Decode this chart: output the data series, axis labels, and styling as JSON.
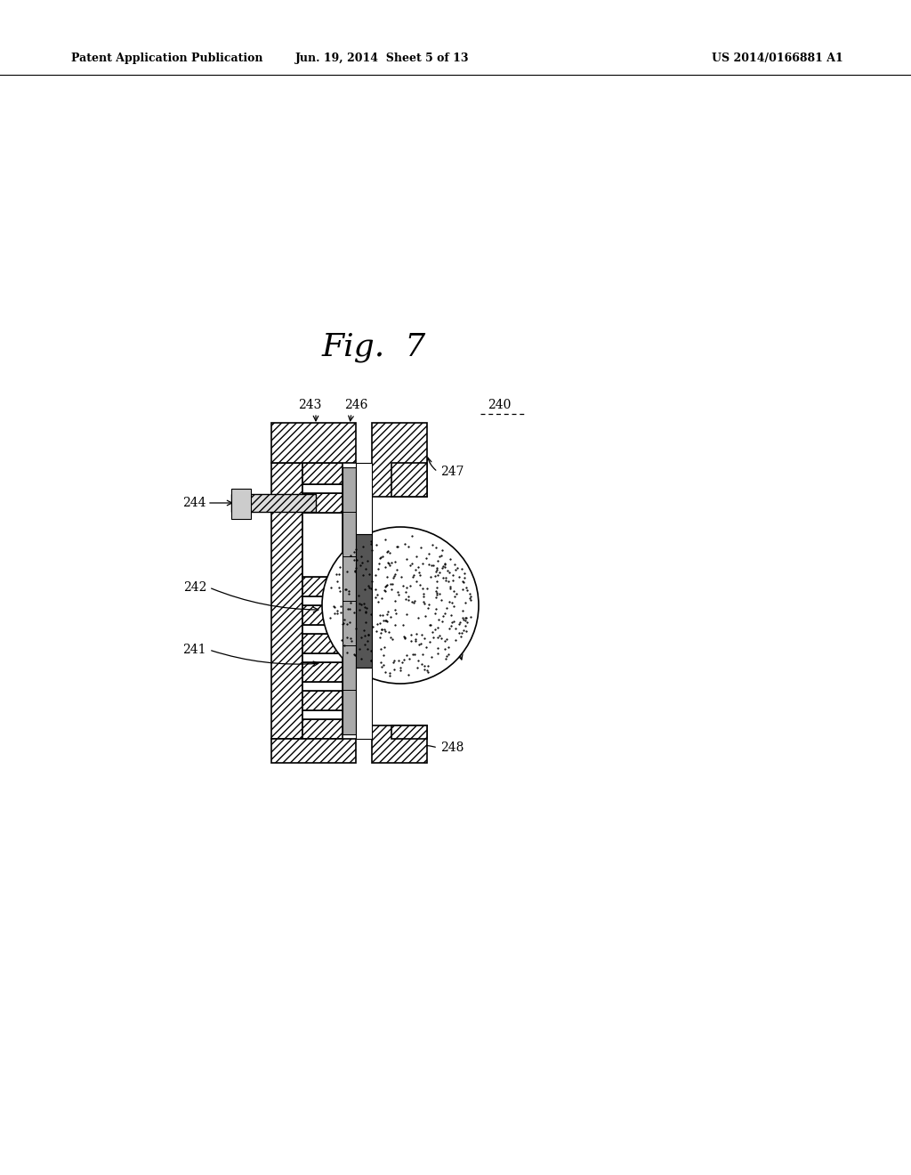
{
  "patent_header_left": "Patent Application Publication",
  "patent_header_mid": "Jun. 19, 2014  Sheet 5 of 13",
  "patent_header_right": "US 2014/0166881 A1",
  "fig_label": "Fig.  7",
  "component_label": "240",
  "bg_color": "#ffffff",
  "label_fontsize": 10,
  "header_fontsize": 9,
  "title_fontsize": 26
}
